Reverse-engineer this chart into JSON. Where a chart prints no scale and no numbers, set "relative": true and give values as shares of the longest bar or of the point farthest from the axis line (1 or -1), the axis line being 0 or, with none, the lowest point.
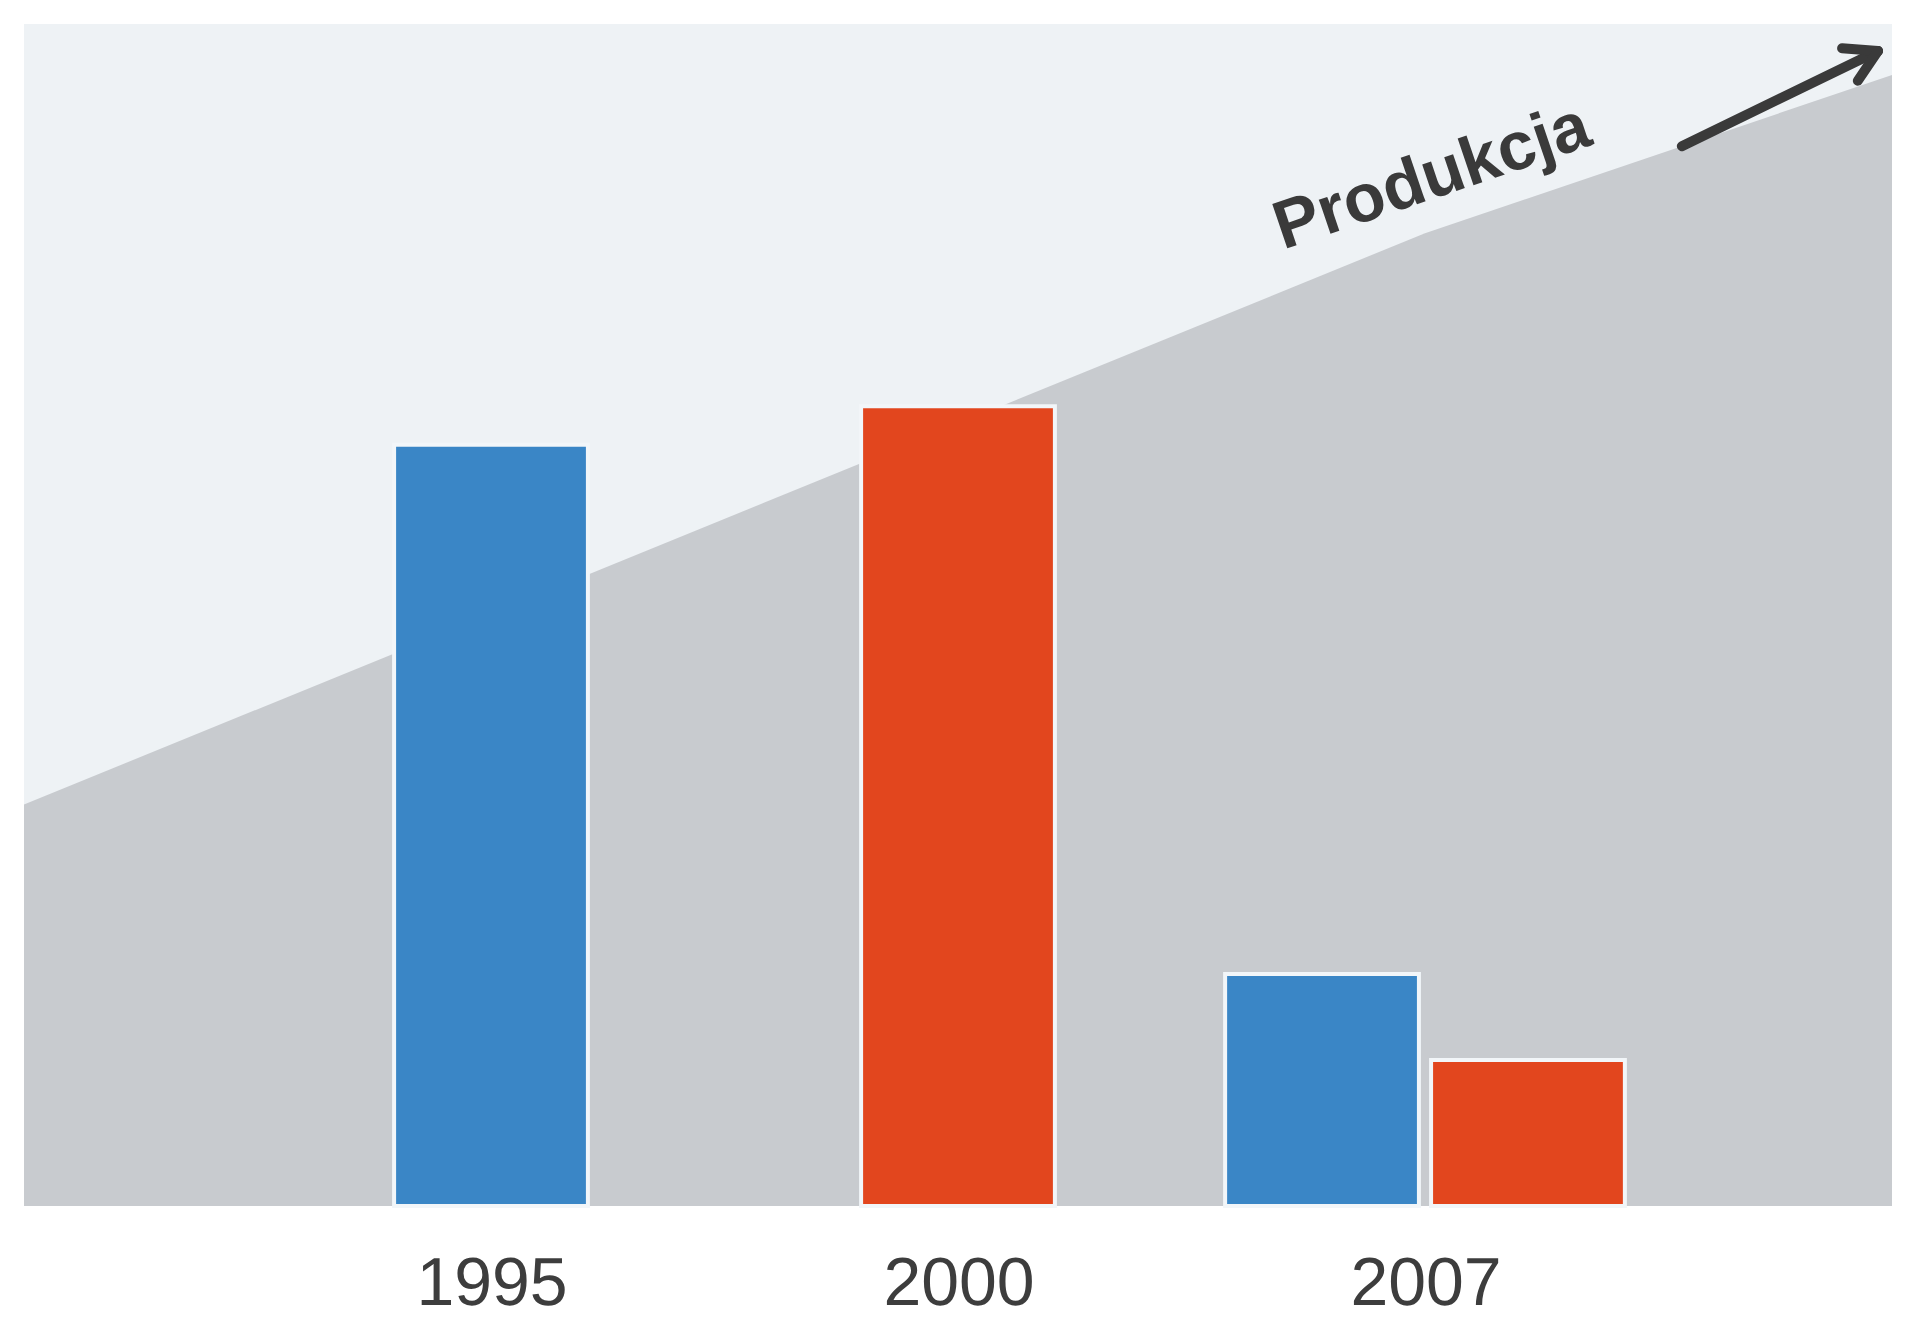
{
  "chart_data": {
    "type": "bar",
    "relative": true,
    "categories": [
      null,
      "1995",
      "2000",
      "2007",
      null
    ],
    "series": [
      {
        "name": "Produkcja",
        "type": "area",
        "color": "#c8cbcf",
        "values": [
          0.355,
          null,
          null,
          0.86,
          1.0
        ]
      },
      {
        "color": "#3a86c6",
        "values": [
          null,
          0.673,
          null,
          0.205,
          null
        ]
      },
      {
        "color": "#e2461e",
        "values": [
          null,
          null,
          0.707,
          0.129,
          null
        ]
      }
    ]
  }
}
